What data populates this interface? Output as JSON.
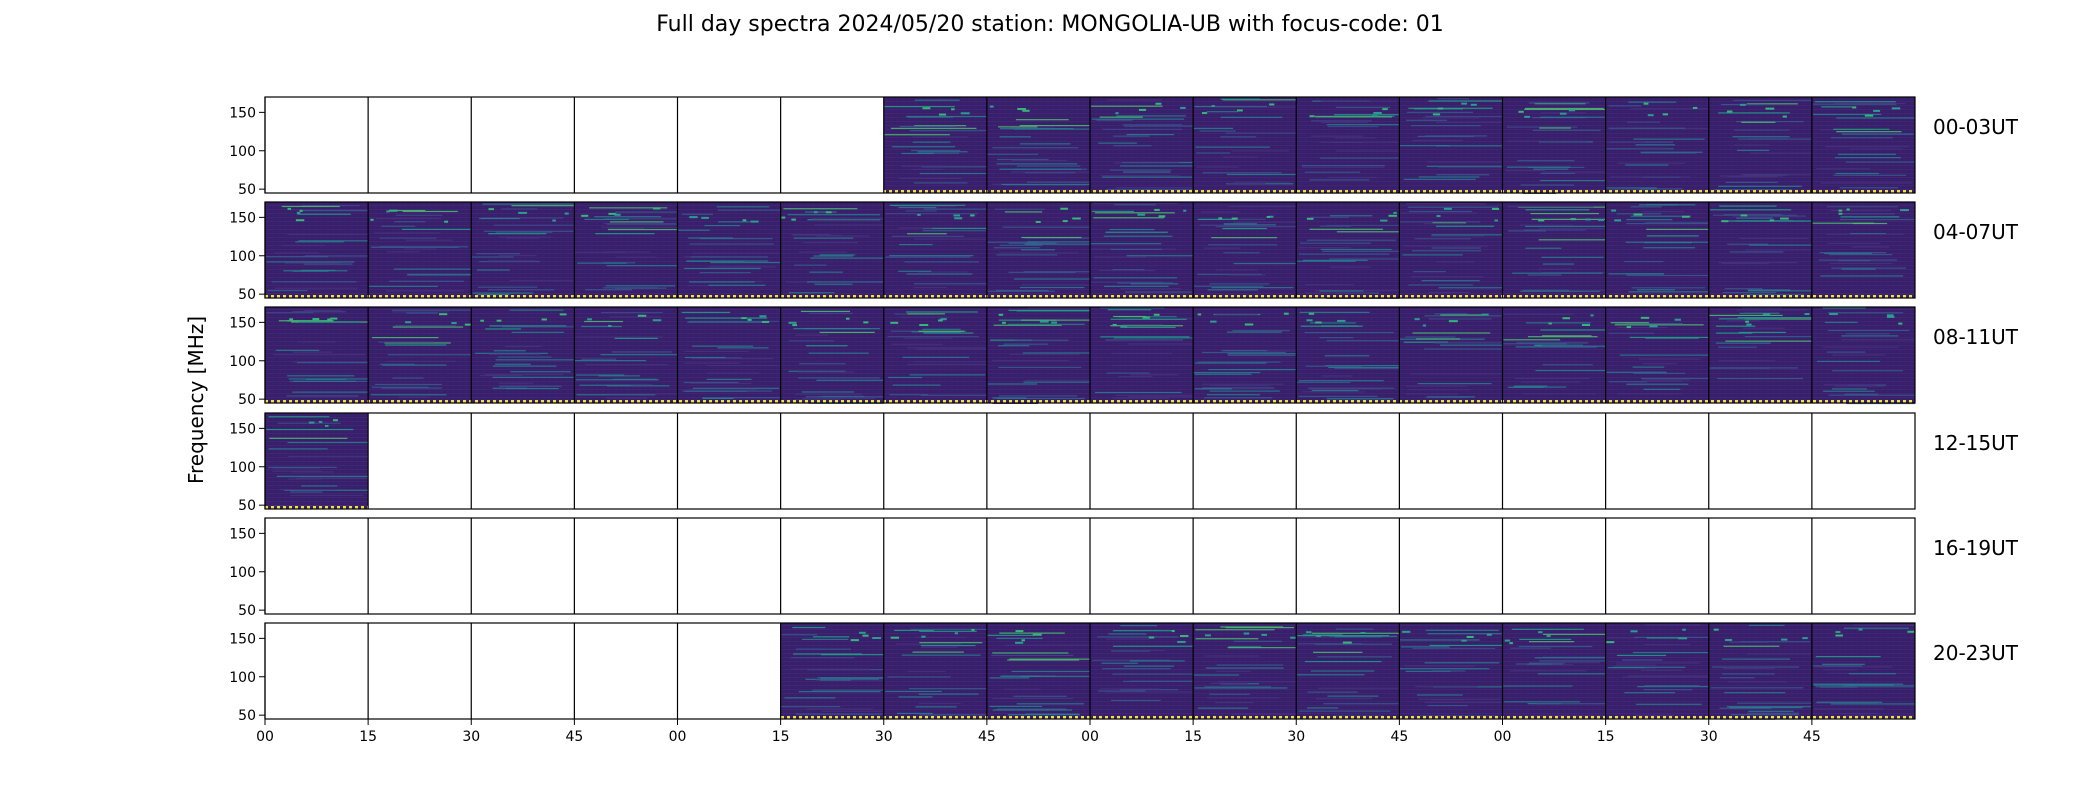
{
  "chart_data": {
    "type": "heatmap",
    "title": "Full day spectra 2024/05/20 station: MONGOLIA-UB with focus-code: 01",
    "ylabel": "Frequency [MHz]",
    "xlabel": "",
    "ylim": [
      45,
      170
    ],
    "yticks": [
      50,
      100,
      150
    ],
    "xtick_labels": [
      "00",
      "15",
      "30",
      "45",
      "00",
      "15",
      "30",
      "45",
      "00",
      "15",
      "30",
      "45",
      "00",
      "15",
      "30",
      "45"
    ],
    "colormap": "viridis",
    "background_color": "#3b1c6b",
    "rows": [
      {
        "label": "00-03UT",
        "data_present": [
          0,
          0,
          0,
          0,
          0,
          0,
          1,
          1,
          1,
          1,
          1,
          1,
          1,
          1,
          1,
          1
        ]
      },
      {
        "label": "04-07UT",
        "data_present": [
          1,
          1,
          1,
          1,
          1,
          1,
          1,
          1,
          1,
          1,
          1,
          1,
          1,
          1,
          1,
          1
        ]
      },
      {
        "label": "08-11UT",
        "data_present": [
          1,
          1,
          1,
          1,
          1,
          1,
          1,
          1,
          1,
          1,
          1,
          1,
          1,
          1,
          1,
          1
        ]
      },
      {
        "label": "12-15UT",
        "data_present": [
          1,
          0,
          0,
          0,
          0,
          0,
          0,
          0,
          0,
          0,
          0,
          0,
          0,
          0,
          0,
          0
        ]
      },
      {
        "label": "16-19UT",
        "data_present": [
          0,
          0,
          0,
          0,
          0,
          0,
          0,
          0,
          0,
          0,
          0,
          0,
          0,
          0,
          0,
          0
        ]
      },
      {
        "label": "20-23UT",
        "data_present": [
          0,
          0,
          0,
          0,
          0,
          1,
          1,
          1,
          1,
          1,
          1,
          1,
          1,
          1,
          1,
          1
        ]
      }
    ]
  }
}
